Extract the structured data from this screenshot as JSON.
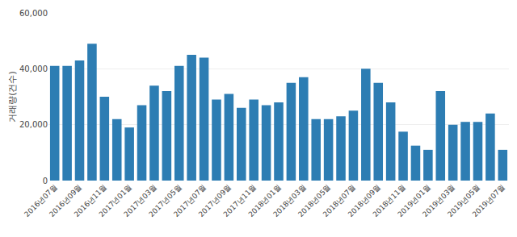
{
  "chart_data": {
    "type": "bar",
    "categories": [
      "2016년07월",
      null,
      "2016년09월",
      null,
      "2016년11월",
      null,
      "2017년01월",
      null,
      "2017년03월",
      null,
      "2017년05월",
      null,
      "2017년07월",
      null,
      "2017년09월",
      null,
      "2017년11월",
      null,
      "2018년01월",
      null,
      "2018년03월",
      null,
      "2018년05월",
      null,
      "2018년07월",
      null,
      "2018년09월",
      null,
      "2018년11월",
      null,
      "2019년01월",
      null,
      "2019년03월",
      null,
      "2019년05월",
      null,
      "2019년07월"
    ],
    "values": [
      41000,
      41000,
      43000,
      49000,
      30000,
      22000,
      19000,
      27000,
      34000,
      32000,
      41000,
      45000,
      44000,
      29000,
      31000,
      26000,
      29000,
      27000,
      28000,
      35000,
      37000,
      22000,
      22000,
      23000,
      25000,
      40000,
      35000,
      28000,
      17500,
      12500,
      11000,
      32000,
      20000,
      21000,
      21000,
      24000,
      11000
    ],
    "color": "#2d7db3",
    "ylabel": "거래량(건수)",
    "ylim": [
      0,
      60000
    ],
    "yticks": [
      0,
      {
        "value": 20000,
        "label": "20,000"
      },
      {
        "value": 40000,
        "label": "40,000"
      },
      {
        "value": 60000,
        "label": "60,000"
      }
    ],
    "grid": true
  }
}
